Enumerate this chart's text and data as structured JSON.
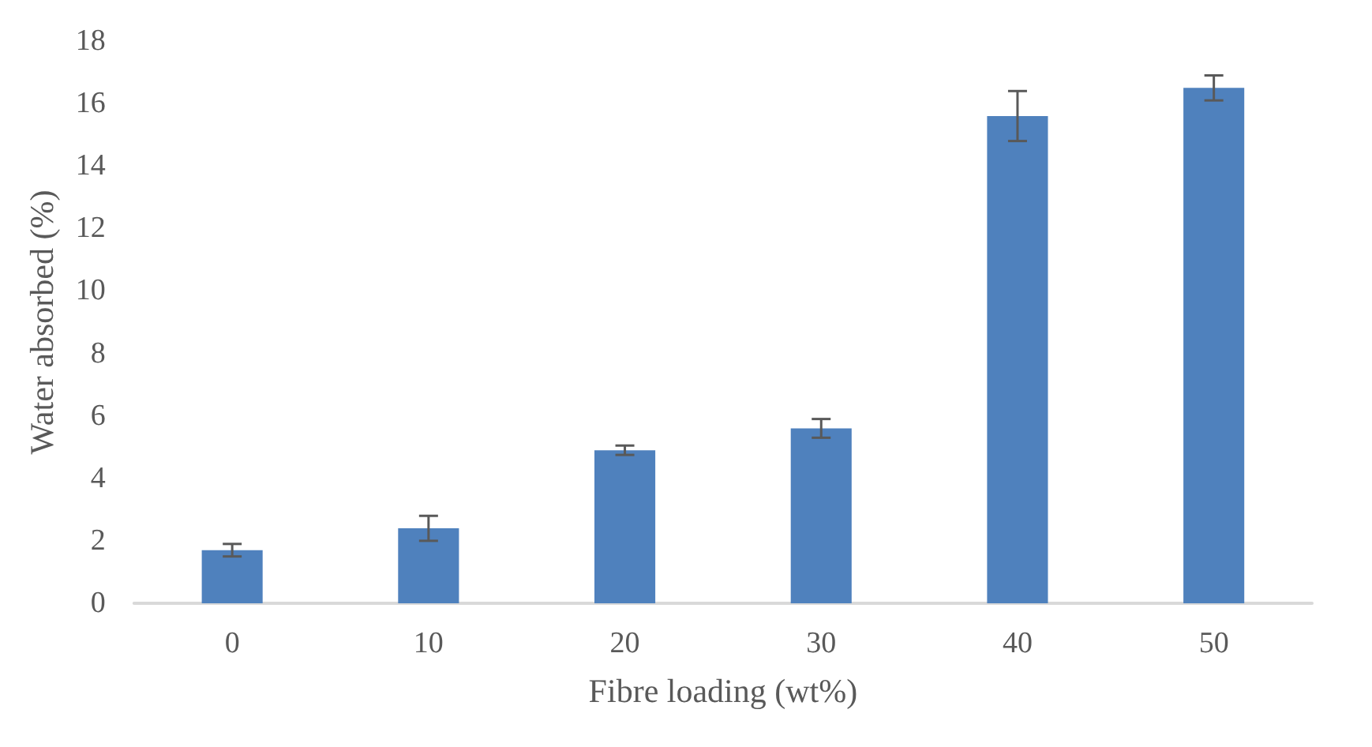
{
  "chart_data": {
    "type": "bar",
    "xlabel": "Fibre loading (wt%)",
    "ylabel": "Water absorbed (%)",
    "categories": [
      "0",
      "10",
      "20",
      "30",
      "40",
      "50"
    ],
    "values": [
      1.7,
      2.4,
      4.9,
      5.6,
      15.6,
      16.5
    ],
    "errors": [
      0.2,
      0.4,
      0.15,
      0.3,
      0.8,
      0.4
    ],
    "color": "#4f81bd",
    "ylim": [
      0,
      18
    ],
    "yticks": [
      0,
      2,
      4,
      6,
      8,
      10,
      12,
      14,
      16,
      18
    ],
    "grid": false
  }
}
